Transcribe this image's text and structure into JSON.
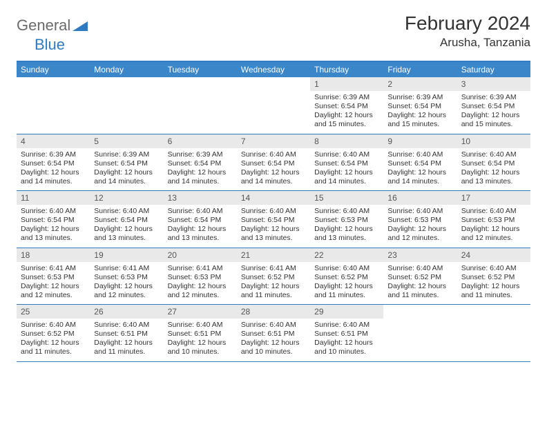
{
  "logo": {
    "word1": "General",
    "word2": "Blue"
  },
  "title": "February 2024",
  "location": "Arusha, Tanzania",
  "colors": {
    "header_bg": "#3a86c8",
    "header_text": "#ffffff",
    "border": "#2f7bc1",
    "daynum_bg": "#e9e9e9",
    "text": "#333333",
    "logo_gray": "#6b6b6b",
    "logo_blue": "#2f7bc1"
  },
  "day_names": [
    "Sunday",
    "Monday",
    "Tuesday",
    "Wednesday",
    "Thursday",
    "Friday",
    "Saturday"
  ],
  "weeks": [
    [
      {
        "empty": true
      },
      {
        "empty": true
      },
      {
        "empty": true
      },
      {
        "empty": true
      },
      {
        "n": "1",
        "sunrise": "6:39 AM",
        "sunset": "6:54 PM",
        "daylight": "12 hours and 15 minutes."
      },
      {
        "n": "2",
        "sunrise": "6:39 AM",
        "sunset": "6:54 PM",
        "daylight": "12 hours and 15 minutes."
      },
      {
        "n": "3",
        "sunrise": "6:39 AM",
        "sunset": "6:54 PM",
        "daylight": "12 hours and 15 minutes."
      }
    ],
    [
      {
        "n": "4",
        "sunrise": "6:39 AM",
        "sunset": "6:54 PM",
        "daylight": "12 hours and 14 minutes."
      },
      {
        "n": "5",
        "sunrise": "6:39 AM",
        "sunset": "6:54 PM",
        "daylight": "12 hours and 14 minutes."
      },
      {
        "n": "6",
        "sunrise": "6:39 AM",
        "sunset": "6:54 PM",
        "daylight": "12 hours and 14 minutes."
      },
      {
        "n": "7",
        "sunrise": "6:40 AM",
        "sunset": "6:54 PM",
        "daylight": "12 hours and 14 minutes."
      },
      {
        "n": "8",
        "sunrise": "6:40 AM",
        "sunset": "6:54 PM",
        "daylight": "12 hours and 14 minutes."
      },
      {
        "n": "9",
        "sunrise": "6:40 AM",
        "sunset": "6:54 PM",
        "daylight": "12 hours and 14 minutes."
      },
      {
        "n": "10",
        "sunrise": "6:40 AM",
        "sunset": "6:54 PM",
        "daylight": "12 hours and 13 minutes."
      }
    ],
    [
      {
        "n": "11",
        "sunrise": "6:40 AM",
        "sunset": "6:54 PM",
        "daylight": "12 hours and 13 minutes."
      },
      {
        "n": "12",
        "sunrise": "6:40 AM",
        "sunset": "6:54 PM",
        "daylight": "12 hours and 13 minutes."
      },
      {
        "n": "13",
        "sunrise": "6:40 AM",
        "sunset": "6:54 PM",
        "daylight": "12 hours and 13 minutes."
      },
      {
        "n": "14",
        "sunrise": "6:40 AM",
        "sunset": "6:54 PM",
        "daylight": "12 hours and 13 minutes."
      },
      {
        "n": "15",
        "sunrise": "6:40 AM",
        "sunset": "6:53 PM",
        "daylight": "12 hours and 13 minutes."
      },
      {
        "n": "16",
        "sunrise": "6:40 AM",
        "sunset": "6:53 PM",
        "daylight": "12 hours and 12 minutes."
      },
      {
        "n": "17",
        "sunrise": "6:40 AM",
        "sunset": "6:53 PM",
        "daylight": "12 hours and 12 minutes."
      }
    ],
    [
      {
        "n": "18",
        "sunrise": "6:41 AM",
        "sunset": "6:53 PM",
        "daylight": "12 hours and 12 minutes."
      },
      {
        "n": "19",
        "sunrise": "6:41 AM",
        "sunset": "6:53 PM",
        "daylight": "12 hours and 12 minutes."
      },
      {
        "n": "20",
        "sunrise": "6:41 AM",
        "sunset": "6:53 PM",
        "daylight": "12 hours and 12 minutes."
      },
      {
        "n": "21",
        "sunrise": "6:41 AM",
        "sunset": "6:52 PM",
        "daylight": "12 hours and 11 minutes."
      },
      {
        "n": "22",
        "sunrise": "6:40 AM",
        "sunset": "6:52 PM",
        "daylight": "12 hours and 11 minutes."
      },
      {
        "n": "23",
        "sunrise": "6:40 AM",
        "sunset": "6:52 PM",
        "daylight": "12 hours and 11 minutes."
      },
      {
        "n": "24",
        "sunrise": "6:40 AM",
        "sunset": "6:52 PM",
        "daylight": "12 hours and 11 minutes."
      }
    ],
    [
      {
        "n": "25",
        "sunrise": "6:40 AM",
        "sunset": "6:52 PM",
        "daylight": "12 hours and 11 minutes."
      },
      {
        "n": "26",
        "sunrise": "6:40 AM",
        "sunset": "6:51 PM",
        "daylight": "12 hours and 11 minutes."
      },
      {
        "n": "27",
        "sunrise": "6:40 AM",
        "sunset": "6:51 PM",
        "daylight": "12 hours and 10 minutes."
      },
      {
        "n": "28",
        "sunrise": "6:40 AM",
        "sunset": "6:51 PM",
        "daylight": "12 hours and 10 minutes."
      },
      {
        "n": "29",
        "sunrise": "6:40 AM",
        "sunset": "6:51 PM",
        "daylight": "12 hours and 10 minutes."
      },
      {
        "empty": true
      },
      {
        "empty": true
      }
    ]
  ],
  "labels": {
    "sunrise": "Sunrise:",
    "sunset": "Sunset:",
    "daylight": "Daylight:"
  }
}
